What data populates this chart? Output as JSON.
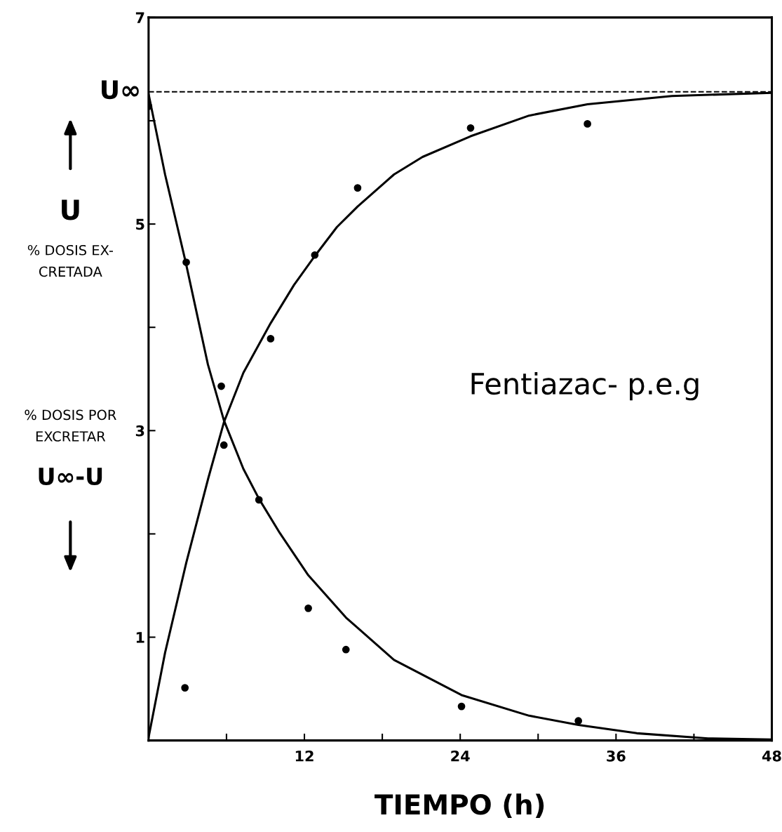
{
  "chart_data": {
    "type": "scatter",
    "xlabel": "TIEMPO (h)",
    "xlim": [
      0,
      48
    ],
    "ylim": [
      0,
      7
    ],
    "xticks": [
      {
        "value": 6,
        "label": null
      },
      12,
      {
        "value": 18,
        "label": null
      },
      24,
      {
        "value": 30,
        "label": null
      },
      36,
      {
        "value": 42,
        "label": null
      },
      48
    ],
    "yticks": [
      1,
      {
        "value": 2,
        "label": null
      },
      3,
      {
        "value": 4,
        "label": null
      },
      5,
      {
        "value": 6,
        "label": null
      },
      7
    ],
    "grid": false,
    "marker": "circle",
    "ref_lines": [
      {
        "axis": "y",
        "value": 6.28,
        "label": "U∞",
        "line_style": "dashed",
        "color": "#000000"
      }
    ],
    "annotations": [
      "U",
      "% DOSIS EX-\nCRETADA",
      "% DOSIS POR\nEXCRETAR",
      "U∞-U",
      "Fentiazac- p.e.g"
    ],
    "series": [
      {
        "color": "#000000",
        "x": [
          2.8,
          5.8,
          9.4,
          12.8,
          16.1,
          24.8,
          33.8
        ],
        "values": [
          0.51,
          2.86,
          3.89,
          4.7,
          5.35,
          5.93,
          5.97
        ]
      },
      {
        "color": "#000000",
        "x": [
          0,
          2.9,
          5.6,
          8.5,
          12.3,
          15.2,
          24.1,
          33.1
        ],
        "values": [
          6.14,
          4.63,
          3.43,
          2.33,
          1.28,
          0.88,
          0.33,
          0.19
        ]
      },
      {
        "type": "line",
        "color": "#000000",
        "marker": "none",
        "line_style": "solid",
        "x": [
          0,
          1.27,
          2.9,
          4.6,
          5.8,
          7.3,
          9.4,
          11.2,
          12.8,
          14.5,
          16.1,
          18.9,
          21.1,
          24.8,
          29.3,
          33.8,
          40.3,
          48
        ],
        "values": [
          0.03,
          0.85,
          1.72,
          2.54,
          3.08,
          3.56,
          4.04,
          4.41,
          4.69,
          4.97,
          5.17,
          5.48,
          5.65,
          5.85,
          6.05,
          6.16,
          6.24,
          6.27
        ]
      },
      {
        "type": "line",
        "color": "#000000",
        "marker": "none",
        "line_style": "solid",
        "x": [
          0,
          1.27,
          2.86,
          4.57,
          5.8,
          7.3,
          8.5,
          10.1,
          12.3,
          15.2,
          18.9,
          24.1,
          29.3,
          33.1,
          37.6,
          43.1,
          48
        ],
        "values": [
          6.26,
          5.48,
          4.63,
          3.64,
          3.1,
          2.63,
          2.34,
          2.01,
          1.6,
          1.19,
          0.78,
          0.44,
          0.24,
          0.15,
          0.07,
          0.02,
          0.01
        ]
      }
    ]
  }
}
